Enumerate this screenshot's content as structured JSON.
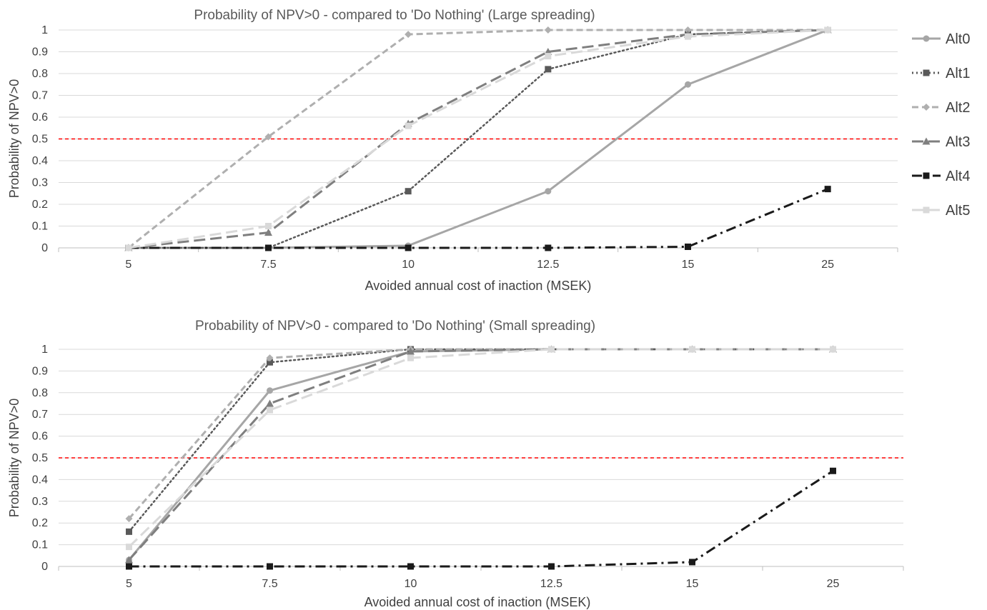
{
  "chart_data": [
    {
      "type": "line",
      "title": "Probability of NPV>0 - compared to 'Do Nothing' (Large spreading)",
      "xlabel": "Avoided annual cost of inaction (MSEK)",
      "ylabel": "Probability of NPV>0",
      "categories": [
        "5",
        "7.5",
        "10",
        "12.5",
        "15",
        "25"
      ],
      "ylim": [
        0,
        1
      ],
      "yticks": [
        "0",
        "0.1",
        "0.2",
        "0.3",
        "0.4",
        "0.5",
        "0.6",
        "0.7",
        "0.8",
        "0.9",
        "1"
      ],
      "reference_line": {
        "value": 0.5,
        "color": "#ff0000",
        "style": "dashed"
      },
      "grid": true,
      "series": [
        {
          "name": "Alt0",
          "values": [
            0,
            0,
            0.01,
            0.26,
            0.75,
            1.0
          ]
        },
        {
          "name": "Alt1",
          "values": [
            0,
            0,
            0.26,
            0.82,
            0.98,
            1.0
          ]
        },
        {
          "name": "Alt2",
          "values": [
            0,
            0.51,
            0.98,
            1.0,
            1.0,
            1.0
          ]
        },
        {
          "name": "Alt3",
          "values": [
            0,
            0.07,
            0.57,
            0.9,
            0.98,
            1.0
          ]
        },
        {
          "name": "Alt4",
          "values": [
            0,
            0,
            0,
            0,
            0.005,
            0.27
          ]
        },
        {
          "name": "Alt5",
          "values": [
            0,
            0.1,
            0.56,
            0.88,
            0.97,
            1.0
          ]
        }
      ]
    },
    {
      "type": "line",
      "title": "Probability of NPV>0 - compared to 'Do Nothing' (Small spreading)",
      "xlabel": "Avoided annual cost of inaction (MSEK)",
      "ylabel": "Probability of NPV>0",
      "categories": [
        "5",
        "7.5",
        "10",
        "12.5",
        "15",
        "25"
      ],
      "ylim": [
        0,
        1
      ],
      "yticks": [
        "0",
        "0.1",
        "0.2",
        "0.3",
        "0.4",
        "0.5",
        "0.6",
        "0.7",
        "0.8",
        "0.9",
        "1"
      ],
      "reference_line": {
        "value": 0.5,
        "color": "#ff0000",
        "style": "dashed"
      },
      "grid": true,
      "series": [
        {
          "name": "Alt0",
          "values": [
            0.03,
            0.81,
            0.99,
            1.0,
            1.0,
            1.0
          ]
        },
        {
          "name": "Alt1",
          "values": [
            0.16,
            0.94,
            1.0,
            1.0,
            1.0,
            1.0
          ]
        },
        {
          "name": "Alt2",
          "values": [
            0.22,
            0.96,
            1.0,
            1.0,
            1.0,
            1.0
          ]
        },
        {
          "name": "Alt3",
          "values": [
            0.03,
            0.75,
            0.99,
            1.0,
            1.0,
            1.0
          ]
        },
        {
          "name": "Alt4",
          "values": [
            0,
            0,
            0,
            0,
            0.02,
            0.44
          ]
        },
        {
          "name": "Alt5",
          "values": [
            0.09,
            0.72,
            0.96,
            1.0,
            1.0,
            1.0
          ]
        }
      ]
    }
  ],
  "legend": {
    "placement": "right",
    "items": [
      {
        "name": "Alt0",
        "color": "#a6a6a6",
        "style": "solid",
        "marker": "circle"
      },
      {
        "name": "Alt1",
        "color": "#595959",
        "style": "dotted",
        "marker": "square"
      },
      {
        "name": "Alt2",
        "color": "#afafaf",
        "style": "dashed",
        "marker": "diamond"
      },
      {
        "name": "Alt3",
        "color": "#7f7f7f",
        "style": "long-dash",
        "marker": "triangle"
      },
      {
        "name": "Alt4",
        "color": "#1a1a1a",
        "style": "dash-dot",
        "marker": "square"
      },
      {
        "name": "Alt5",
        "color": "#d9d9d9",
        "style": "long-dash",
        "marker": "square"
      }
    ]
  }
}
